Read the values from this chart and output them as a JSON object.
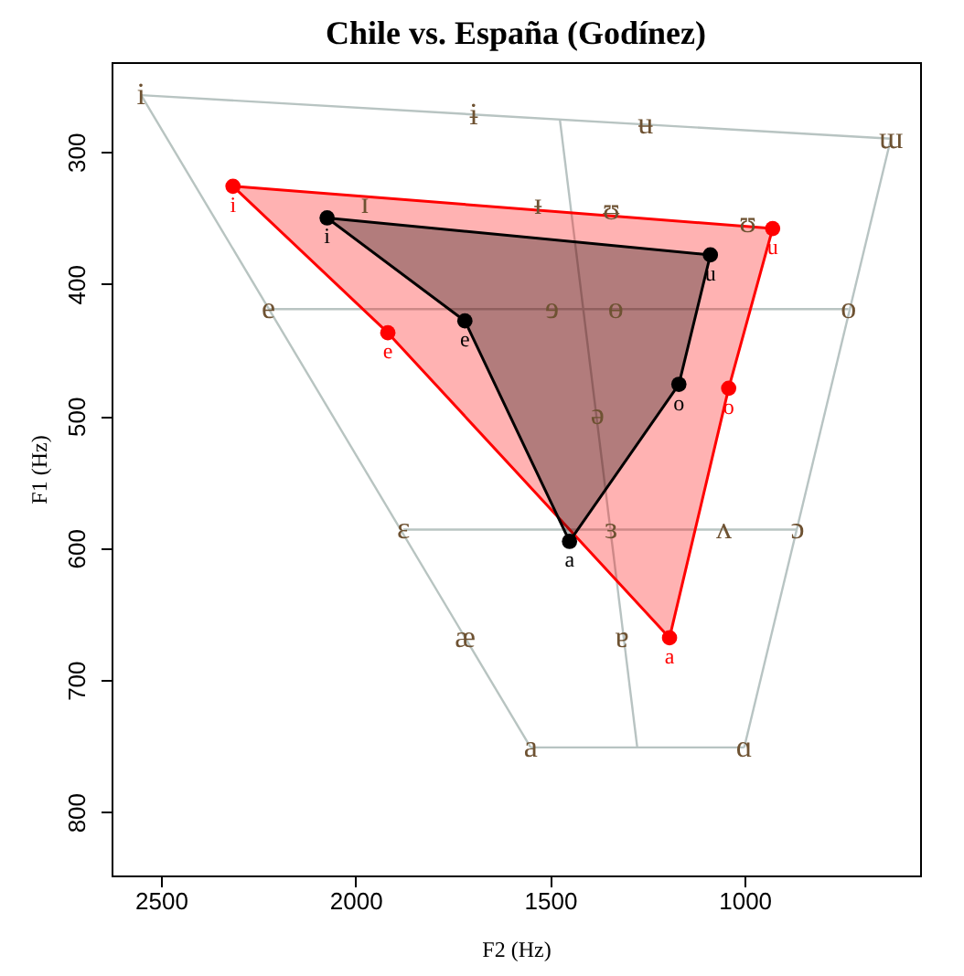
{
  "chart_data": {
    "type": "line",
    "title": "Chile vs. España (Godínez)",
    "xlabel": "F2 (Hz)",
    "ylabel": "F1 (Hz)",
    "xlim": [
      2627,
      549
    ],
    "ylim": [
      848,
      232
    ],
    "xticks": [
      2500,
      2000,
      1500,
      1000
    ],
    "yticks": [
      300,
      400,
      500,
      600,
      700,
      800
    ],
    "grid": false,
    "series": [
      {
        "color": "#b8c4c2",
        "marker": "none",
        "x": [
          2551,
          624
        ],
        "values": [
          257,
          290
        ]
      },
      {
        "color": "#b8c4c1",
        "marker": "none",
        "x": [
          2551,
          1550
        ],
        "values": [
          257,
          751
        ]
      },
      {
        "color": "#b8c4c3",
        "marker": "none",
        "x": [
          1001,
          624
        ],
        "values": [
          751,
          290
        ]
      },
      {
        "color": "#b7c4c2",
        "marker": "none",
        "x": [
          1550,
          1001
        ],
        "values": [
          751,
          751
        ]
      },
      {
        "color": "#b9c4c2",
        "marker": "none",
        "x": [
          2224,
          733
        ],
        "values": [
          419,
          419
        ]
      },
      {
        "color": "#b8c5c2",
        "marker": "none",
        "x": [
          1877,
          864
        ],
        "values": [
          586,
          586
        ]
      },
      {
        "color": "#b8c3c2",
        "marker": "none",
        "x": [
          1475,
          1276
        ],
        "values": [
          275,
          751
        ]
      },
      {
        "type": "area",
        "color": "#ff0000",
        "marker": "circle",
        "x": [
          2315,
          1917,
          1193,
          1041,
          928
        ],
        "values": [
          326,
          437,
          668,
          479,
          358
        ],
        "value_labels": [
          "i",
          "e",
          "a",
          "o",
          "u"
        ]
      },
      {
        "type": "area",
        "color": "#000000",
        "marker": "circle",
        "x": [
          2073,
          1719,
          1450,
          1169,
          1088
        ],
        "values": [
          350,
          428,
          595,
          476,
          378
        ],
        "value_labels": [
          "i",
          "e",
          "a",
          "o",
          "u"
        ]
      }
    ],
    "annotations": [
      {
        "text": "i",
        "x": 2551,
        "y": 257
      },
      {
        "text": "ɨ",
        "x": 1696,
        "y": 272
      },
      {
        "text": "ʉ",
        "x": 1255,
        "y": 279
      },
      {
        "text": "ɯ",
        "x": 624,
        "y": 290
      },
      {
        "text": "ɪ",
        "x": 1976,
        "y": 339
      },
      {
        "text": "ᵻ",
        "x": 1531,
        "y": 340
      },
      {
        "text": "ᵿ",
        "x": 1343,
        "y": 344
      },
      {
        "text": "ʊ",
        "x": 992,
        "y": 354
      },
      {
        "text": "e",
        "x": 2224,
        "y": 419
      },
      {
        "text": "ɘ",
        "x": 1495,
        "y": 419
      },
      {
        "text": "ɵ",
        "x": 1331,
        "y": 419
      },
      {
        "text": "o",
        "x": 733,
        "y": 419
      },
      {
        "text": "ə",
        "x": 1378,
        "y": 499
      },
      {
        "text": "ɛ",
        "x": 1877,
        "y": 586
      },
      {
        "text": "ɜ",
        "x": 1343,
        "y": 586
      },
      {
        "text": "ʌ",
        "x": 1053,
        "y": 586
      },
      {
        "text": "ɔ",
        "x": 864,
        "y": 586
      },
      {
        "text": "æ",
        "x": 1718,
        "y": 668
      },
      {
        "text": "ɐ",
        "x": 1315,
        "y": 668
      },
      {
        "text": "a",
        "x": 1550,
        "y": 751
      },
      {
        "text": "ɑ",
        "x": 1001,
        "y": 751
      }
    ]
  }
}
